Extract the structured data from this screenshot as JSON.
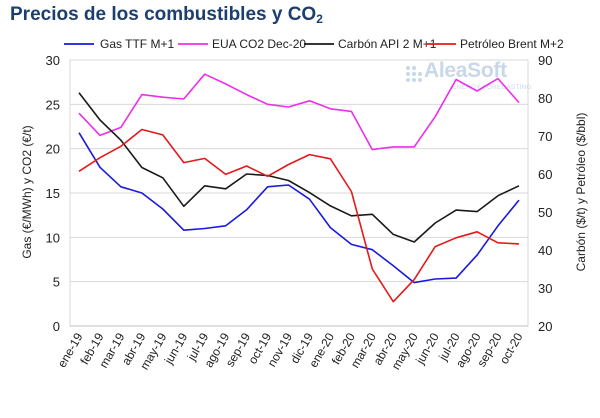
{
  "title_main": "Precios de los combustibles y CO",
  "title_sub": "2",
  "logo": {
    "name": "AleaSoft",
    "tagline": "ENERGY FORECASTING"
  },
  "chart_data": {
    "type": "line",
    "categories": [
      "ene-19",
      "feb-19",
      "mar-19",
      "abr-19",
      "may-19",
      "jun-19",
      "jul-19",
      "ago-19",
      "sep-19",
      "oct-19",
      "nov-19",
      "dic-19",
      "ene-20",
      "feb-20",
      "mar-20",
      "abr-20",
      "may-20",
      "jun-20",
      "jul-20",
      "ago-20",
      "sep-20",
      "oct-20"
    ],
    "ylabel_left": "Gas (€/MWh) y CO2 (€/t)",
    "ylabel_right": "Carbón ($/t) y Petróleo ($/bbl)",
    "ylim_left": [
      0,
      30
    ],
    "ylim_right": [
      20,
      90
    ],
    "yticks_left": [
      0,
      5,
      10,
      15,
      20,
      25,
      30
    ],
    "yticks_right": [
      20,
      30,
      40,
      50,
      60,
      70,
      80,
      90
    ],
    "grid": true,
    "legend_position": "top",
    "series": [
      {
        "name": "Gas TTF M+1",
        "axis": "left",
        "color": "#1a1adc",
        "values": [
          21.8,
          17.9,
          15.7,
          15.0,
          13.2,
          10.8,
          11.0,
          11.3,
          13.1,
          15.7,
          15.9,
          14.3,
          11.1,
          9.2,
          8.6,
          6.8,
          4.9,
          5.3,
          5.4,
          8.0,
          11.3,
          14.2
        ]
      },
      {
        "name": "EUA CO2 Dec-20",
        "axis": "left",
        "color": "#ee2ee8",
        "values": [
          24.0,
          21.5,
          22.4,
          26.1,
          25.8,
          25.6,
          28.4,
          27.3,
          26.1,
          25.0,
          24.7,
          25.4,
          24.5,
          24.2,
          19.9,
          20.2,
          20.2,
          23.6,
          27.8,
          26.5,
          27.9,
          25.2
        ]
      },
      {
        "name": "Carbón API 2 M+1",
        "axis": "right",
        "color": "#1a1a1a",
        "values": [
          81.4,
          74.2,
          68.9,
          61.7,
          59.0,
          51.5,
          56.9,
          56.1,
          60.0,
          59.6,
          58.3,
          55.1,
          51.6,
          49.0,
          49.4,
          44.1,
          42.1,
          47.1,
          50.5,
          50.1,
          54.3,
          56.9
        ]
      },
      {
        "name": "Petróleo Brent M+2",
        "axis": "right",
        "color": "#e31a1a",
        "values": [
          60.7,
          64.3,
          67.3,
          71.7,
          70.3,
          63.0,
          64.1,
          59.9,
          62.1,
          59.4,
          62.5,
          65.1,
          64.0,
          55.4,
          35.0,
          26.4,
          32.2,
          40.9,
          43.2,
          44.8,
          41.9,
          41.6
        ]
      }
    ]
  }
}
